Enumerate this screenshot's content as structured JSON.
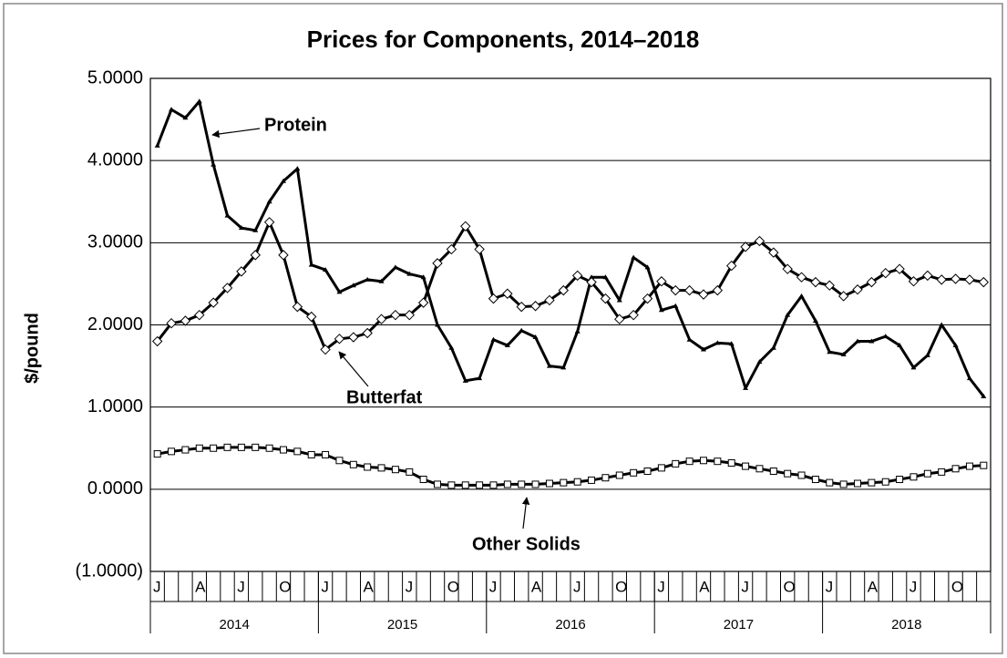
{
  "chart_data": {
    "type": "line",
    "title": "Prices for Components, 2014–2018",
    "ylabel": "$/pound",
    "categories": [
      "J",
      null,
      null,
      "A",
      null,
      null,
      "J",
      null,
      null,
      "O",
      null,
      null,
      "J",
      null,
      null,
      "A",
      null,
      null,
      "J",
      null,
      null,
      "O",
      null,
      null,
      "J",
      null,
      null,
      "A",
      null,
      null,
      "J",
      null,
      null,
      "O",
      null,
      null,
      "J",
      null,
      null,
      "A",
      null,
      null,
      "J",
      null,
      null,
      "O",
      null,
      null,
      "J",
      null,
      null,
      "A",
      null,
      null,
      "J",
      null,
      null,
      "O",
      null,
      null
    ],
    "years": [
      "2014",
      "2015",
      "2016",
      "2017",
      "2018"
    ],
    "ylim": [
      -1,
      5
    ],
    "yticks": [
      {
        "value": -1,
        "label": "(1.0000)"
      },
      {
        "value": 0,
        "label": "0.0000"
      },
      {
        "value": 1,
        "label": "1.0000"
      },
      {
        "value": 2,
        "label": "2.0000"
      },
      {
        "value": 3,
        "label": "3.0000"
      },
      {
        "value": 4,
        "label": "4.0000"
      },
      {
        "value": 5,
        "label": "5.0000"
      }
    ],
    "grid": true,
    "series": [
      {
        "name": "Protein",
        "color": "#000000",
        "marker": "triangle",
        "values": [
          4.18,
          4.62,
          4.52,
          4.72,
          3.95,
          3.33,
          3.18,
          3.15,
          3.5,
          3.75,
          3.9,
          2.73,
          2.67,
          2.4,
          2.48,
          2.55,
          2.53,
          2.7,
          2.62,
          2.58,
          2.0,
          1.72,
          1.32,
          1.35,
          1.82,
          1.75,
          1.93,
          1.85,
          1.5,
          1.48,
          1.92,
          2.58,
          2.58,
          2.3,
          2.82,
          2.7,
          2.18,
          2.23,
          1.82,
          1.7,
          1.78,
          1.77,
          1.23,
          1.55,
          1.72,
          2.12,
          2.35,
          2.05,
          1.67,
          1.64,
          1.8,
          1.8,
          1.86,
          1.75,
          1.48,
          1.63,
          2.0,
          1.75,
          1.35,
          1.13
        ]
      },
      {
        "name": "Butterfat",
        "color": "#000000",
        "marker": "diamond",
        "values": [
          1.8,
          2.02,
          2.05,
          2.12,
          2.27,
          2.45,
          2.65,
          2.85,
          3.25,
          2.85,
          2.22,
          2.1,
          1.7,
          1.83,
          1.85,
          1.9,
          2.07,
          2.12,
          2.12,
          2.27,
          2.75,
          2.92,
          3.2,
          2.92,
          2.32,
          2.38,
          2.22,
          2.23,
          2.3,
          2.42,
          2.6,
          2.52,
          2.32,
          2.07,
          2.12,
          2.32,
          2.53,
          2.42,
          2.42,
          2.37,
          2.42,
          2.72,
          2.95,
          3.02,
          2.88,
          2.68,
          2.58,
          2.52,
          2.48,
          2.35,
          2.43,
          2.52,
          2.63,
          2.68,
          2.53,
          2.6,
          2.55,
          2.56,
          2.55,
          2.52
        ]
      },
      {
        "name": "Other Solids",
        "color": "#000000",
        "marker": "square",
        "values": [
          0.43,
          0.46,
          0.48,
          0.5,
          0.5,
          0.51,
          0.51,
          0.51,
          0.5,
          0.48,
          0.46,
          0.42,
          0.42,
          0.35,
          0.3,
          0.27,
          0.26,
          0.24,
          0.21,
          0.12,
          0.06,
          0.05,
          0.05,
          0.05,
          0.05,
          0.06,
          0.06,
          0.06,
          0.07,
          0.08,
          0.09,
          0.11,
          0.14,
          0.17,
          0.2,
          0.22,
          0.26,
          0.31,
          0.34,
          0.35,
          0.34,
          0.32,
          0.28,
          0.25,
          0.22,
          0.19,
          0.17,
          0.12,
          0.08,
          0.06,
          0.07,
          0.08,
          0.09,
          0.12,
          0.15,
          0.19,
          0.21,
          0.25,
          0.28,
          0.29
        ]
      }
    ]
  }
}
